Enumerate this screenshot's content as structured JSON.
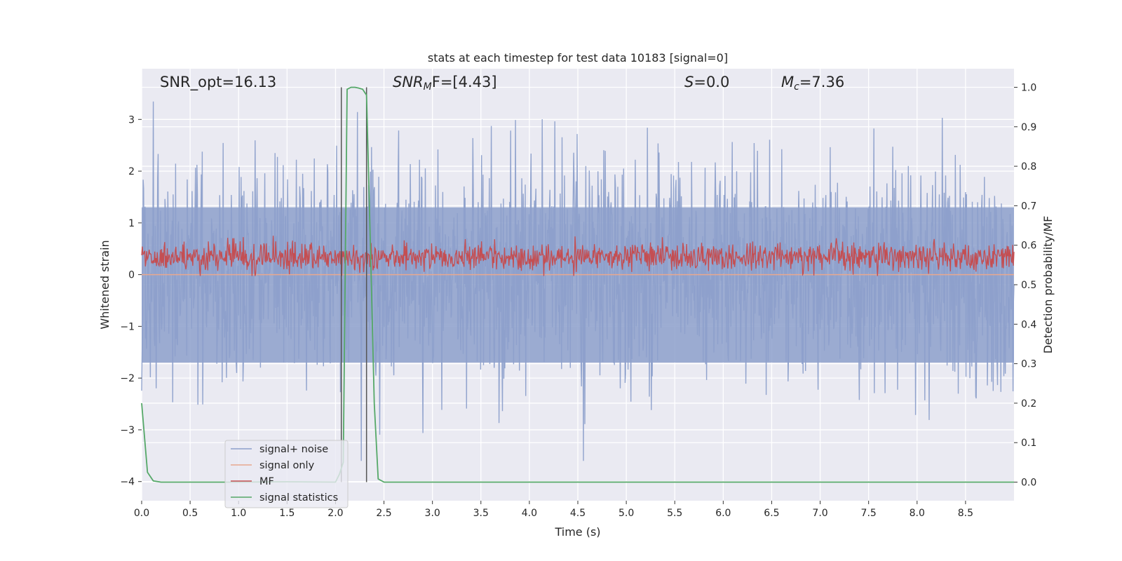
{
  "chart_data": {
    "type": "line",
    "title": "stats at each timestep for test data 10183 [signal=0]",
    "xlabel": "Time (s)",
    "ylabel_left": "Whitened strain",
    "ylabel_right": "Detection probability/MF",
    "xlim": [
      0,
      9.0
    ],
    "ylim_left": [
      -4.37,
      3.98
    ],
    "ylim_right": [
      -0.047,
      1.047
    ],
    "x_ticks": [
      0.0,
      0.5,
      1.0,
      1.5,
      2.0,
      2.5,
      3.0,
      3.5,
      4.0,
      4.5,
      5.0,
      5.5,
      6.0,
      6.5,
      7.0,
      7.5,
      8.0,
      8.5
    ],
    "x_tick_labels": [
      "0.0",
      "0.5",
      "1.0",
      "1.5",
      "2.0",
      "2.5",
      "3.0",
      "3.5",
      "4.0",
      "4.5",
      "5.0",
      "5.5",
      "6.0",
      "6.5",
      "7.0",
      "7.5",
      "8.0",
      "8.5"
    ],
    "y_left_ticks": [
      -4,
      -3,
      -2,
      -1,
      0,
      1,
      2,
      3
    ],
    "y_left_tick_labels": [
      "−4",
      "−3",
      "−2",
      "−1",
      "0",
      "1",
      "2",
      "3"
    ],
    "y_right_ticks": [
      0.0,
      0.1,
      0.2,
      0.3,
      0.4,
      0.5,
      0.6,
      0.7,
      0.8,
      0.9,
      1.0
    ],
    "y_right_tick_labels": [
      "0.0",
      "0.1",
      "0.2",
      "0.3",
      "0.4",
      "0.5",
      "0.6",
      "0.7",
      "0.8",
      "0.9",
      "1.0"
    ],
    "grid": true,
    "legend_position": "lower-left",
    "annotations": {
      "snr_opt": "SNR_opt=16.13",
      "snr_mf_sym": "SNR",
      "snr_mf_sub": "M",
      "snr_mf_rest": "F=[4.43]",
      "s_sym": "S",
      "s_rest": "=0.0",
      "mc_sym": "M",
      "mc_sub": "c",
      "mc_rest": "=7.36"
    },
    "vertical_lines": [
      2.06,
      2.32
    ],
    "series": [
      {
        "name": "signal+ noise",
        "axis": "left",
        "color": "#8da0cb",
        "description_values": {
          "typical_range": [
            -1.7,
            1.3
          ],
          "peaks_max": 3.6,
          "peaks_min": -4.0
        }
      },
      {
        "name": "signal only",
        "axis": "left",
        "color": "#e8a88f",
        "values_constant": 0.0
      },
      {
        "name": "MF",
        "axis": "right",
        "color": "#c44e52",
        "description_values": {
          "typical_range": [
            0.53,
            0.61
          ],
          "peaks_max": 0.66
        }
      },
      {
        "name": "signal statistics",
        "axis": "right",
        "color": "#55a868",
        "x": [
          0.0,
          0.06,
          0.12,
          0.2,
          0.5,
          1.0,
          1.5,
          2.0,
          2.04,
          2.08,
          2.12,
          2.16,
          2.2,
          2.24,
          2.28,
          2.32,
          2.36,
          2.4,
          2.44,
          2.5,
          3.0,
          4.0,
          5.0,
          6.0,
          7.0,
          8.0,
          9.0
        ],
        "values": [
          0.2,
          0.025,
          0.003,
          0.0,
          0.0,
          0.0,
          0.001,
          0.0,
          0.02,
          0.05,
          0.995,
          1.0,
          1.0,
          0.998,
          0.995,
          0.98,
          0.6,
          0.2,
          0.008,
          0.0,
          0.0,
          0.0,
          0.0,
          0.0,
          0.0,
          0.0,
          0.0
        ]
      }
    ]
  }
}
